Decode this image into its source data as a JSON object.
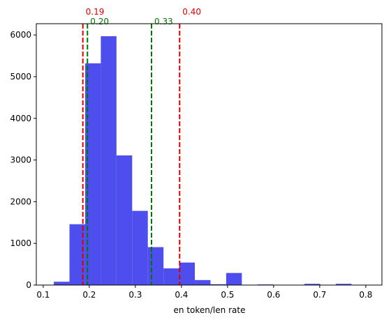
{
  "chart_data": {
    "type": "histogram",
    "xlabel": "en token/len rate",
    "ylabel": "",
    "title": "",
    "xlim": [
      0.085,
      0.835
    ],
    "ylim": [
      0,
      6270
    ],
    "xticks": [
      0.1,
      0.2,
      0.3,
      0.4,
      0.5,
      0.6,
      0.7,
      0.8
    ],
    "xtick_labels": [
      "0.1",
      "0.2",
      "0.3",
      "0.4",
      "0.5",
      "0.6",
      "0.7",
      "0.8"
    ],
    "yticks": [
      0,
      1000,
      2000,
      3000,
      4000,
      5000,
      6000
    ],
    "ytick_labels": [
      "0",
      "1000",
      "2000",
      "3000",
      "4000",
      "5000",
      "6000"
    ],
    "bin_edges": [
      0.123,
      0.157,
      0.191,
      0.225,
      0.259,
      0.293,
      0.327,
      0.361,
      0.395,
      0.429,
      0.463,
      0.497,
      0.531,
      0.565,
      0.599,
      0.633,
      0.667,
      0.701,
      0.735,
      0.769,
      0.803
    ],
    "counts": [
      80,
      1460,
      5320,
      5970,
      3110,
      1780,
      910,
      400,
      540,
      120,
      20,
      290,
      0,
      15,
      0,
      0,
      30,
      0,
      30,
      0
    ],
    "bar_color": "#4444ee",
    "vlines": [
      {
        "x": 0.186,
        "color": "#dd0000",
        "label": "0.19"
      },
      {
        "x": 0.196,
        "color": "#007700",
        "label": "0.20"
      },
      {
        "x": 0.335,
        "color": "#007700",
        "label": "0.33"
      },
      {
        "x": 0.396,
        "color": "#dd0000",
        "label": "0.40"
      }
    ],
    "grid": false,
    "legend": "none"
  }
}
